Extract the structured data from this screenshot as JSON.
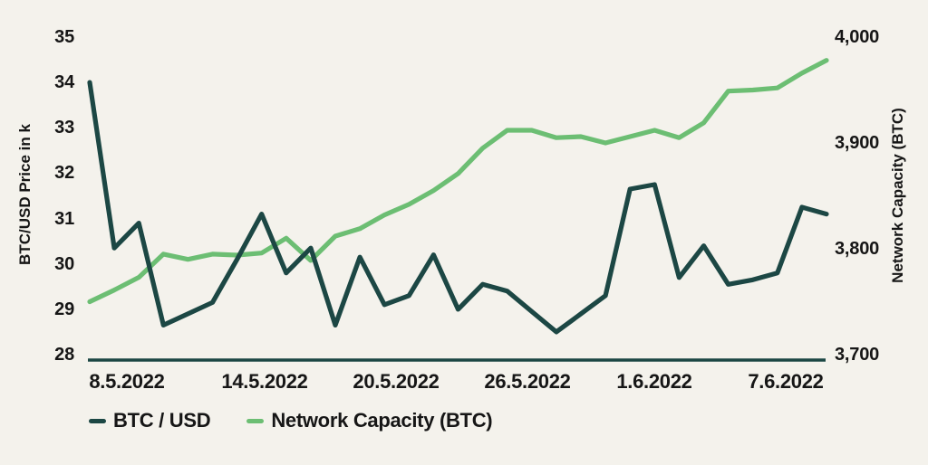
{
  "chart": {
    "left_axis_title": "BTC/USD Price in k",
    "right_axis_title": "Network Capacity (BTC)",
    "legend_items": [
      {
        "label": "BTC / USD",
        "color": "#1c4744"
      },
      {
        "label": "Network Capacity (BTC)",
        "color": "#6cbe73"
      }
    ]
  },
  "chart_data": {
    "type": "line",
    "title": "",
    "x_tick_labels": [
      "8.5.2022",
      "14.5.2022",
      "20.5.2022",
      "26.5.2022",
      "1.6.2022",
      "7.6.2022"
    ],
    "left_axis": {
      "label": "BTC/USD Price in k",
      "ticks": [
        "35",
        "34",
        "33",
        "32",
        "31",
        "30",
        "29",
        "28"
      ],
      "tick_values": [
        35,
        34,
        33,
        32,
        31,
        30,
        29,
        28
      ],
      "ylim": [
        28,
        35
      ]
    },
    "right_axis": {
      "label": "Network Capacity (BTC)",
      "ticks": [
        "4,000",
        "3,900",
        "3,800",
        "3,700"
      ],
      "tick_values": [
        4000,
        3900,
        3800,
        3700
      ],
      "ylim": [
        3700,
        4000
      ]
    },
    "grid": false,
    "legend_position": "bottom-left",
    "series": [
      {
        "name": "BTC / USD",
        "axis": "left",
        "color": "#1c4744",
        "values": [
          34.0,
          30.35,
          30.9,
          28.65,
          28.9,
          29.15,
          30.1,
          31.1,
          29.8,
          30.35,
          28.65,
          30.15,
          29.1,
          29.3,
          30.2,
          29.0,
          29.55,
          29.4,
          28.95,
          28.5,
          28.9,
          29.3,
          31.65,
          31.75,
          29.7,
          30.4,
          29.55,
          29.65,
          29.8,
          31.25,
          31.1
        ]
      },
      {
        "name": "Network Capacity (BTC)",
        "axis": "right",
        "color": "#6cbe73",
        "values": [
          3750,
          3761,
          3773,
          3795,
          3790,
          3795,
          3794,
          3796,
          3810,
          3789,
          3812,
          3819,
          3832,
          3842,
          3855,
          3871,
          3895,
          3912,
          3912,
          3905,
          3906,
          3900,
          3906,
          3912,
          3905,
          3919,
          3949,
          3950,
          3952,
          3966,
          3978
        ]
      }
    ]
  },
  "colors": {
    "background": "#f4f2ec",
    "text": "#161616",
    "axis_line": "#1c4744"
  }
}
